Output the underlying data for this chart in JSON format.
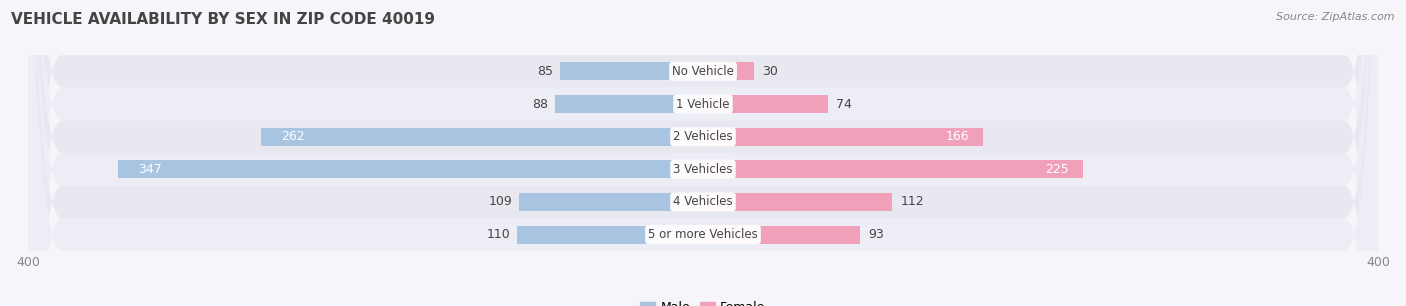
{
  "title": "VEHICLE AVAILABILITY BY SEX IN ZIP CODE 40019",
  "source": "Source: ZipAtlas.com",
  "categories": [
    "No Vehicle",
    "1 Vehicle",
    "2 Vehicles",
    "3 Vehicles",
    "4 Vehicles",
    "5 or more Vehicles"
  ],
  "male_values": [
    85,
    88,
    262,
    347,
    109,
    110
  ],
  "female_values": [
    30,
    74,
    166,
    225,
    112,
    93
  ],
  "male_color": "#a8c4e0",
  "female_color": "#f0a0b8",
  "bar_height": 0.55,
  "xlim": [
    -400,
    400
  ],
  "row_bg_color": "#e8e8f0",
  "row_alt_color": "#ededf5",
  "title_fontsize": 11,
  "source_fontsize": 8,
  "label_fontsize": 9,
  "category_fontsize": 8.5,
  "fig_bg": "#f5f5fa"
}
